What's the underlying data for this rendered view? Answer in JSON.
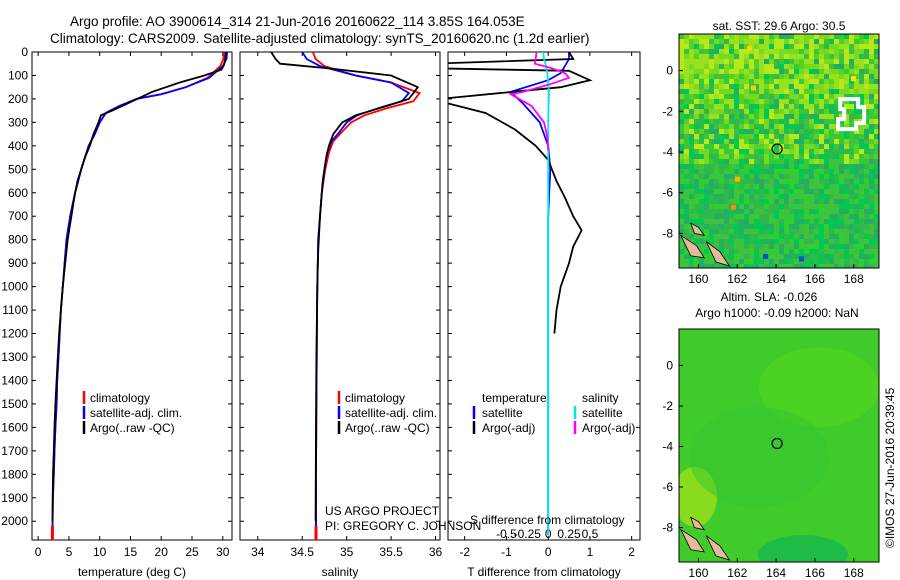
{
  "header": {
    "line1": "Argo profile: AO 3900614_314 21-Jun-2016 20160622_114 3.85S 164.053E",
    "line2": "Climatology: CARS2009. Satellite-adjusted climatology: synTS_20160620.nc (1.2d earlier)"
  },
  "footer": {
    "project": "US ARGO PROJECT",
    "pi": "PI: GREGORY C. JOHNSON",
    "stamp": "©IMOS 27-Jun-2016 20:39:45"
  },
  "colors": {
    "climatology": "#ff0000",
    "satellite": "#0000ff",
    "argo": "#000000",
    "sal_satellite": "#00e5ee",
    "sal_argo": "#ff00ff",
    "map_land": "#e8b89a",
    "map_missing": "#ffffff"
  },
  "chart_data": [
    {
      "id": "temperature",
      "type": "line",
      "xlabel": "temperature (deg C)",
      "ylabel": "",
      "xlim": [
        -1,
        31.5
      ],
      "ylim": [
        2080,
        0
      ],
      "xticks": [
        0,
        5,
        10,
        15,
        20,
        25,
        30
      ],
      "yticks": [
        0,
        100,
        200,
        300,
        400,
        500,
        600,
        700,
        800,
        900,
        1000,
        1100,
        1200,
        1300,
        1400,
        1500,
        1600,
        1700,
        1800,
        1900,
        2000
      ],
      "legend": [
        "climatology",
        "satellite-adj. clim.",
        "Argo(..raw -QC)"
      ],
      "series": [
        {
          "name": "climatology",
          "color": "#ff0000",
          "x": [
            30.2,
            30.1,
            29.6,
            27.5,
            24.0,
            20.0,
            16.0,
            13.2,
            11.0,
            10.0,
            9.2,
            8.2,
            7.6,
            7.0,
            6.5,
            6.0,
            5.6,
            5.2,
            4.9,
            4.6,
            4.3,
            4.0,
            3.7,
            3.5,
            3.3,
            3.1,
            3.0,
            2.8,
            2.65,
            2.55,
            2.4,
            2.35,
            2.32
          ],
          "y": [
            0,
            30,
            60,
            110,
            150,
            180,
            200,
            230,
            260,
            300,
            350,
            400,
            450,
            500,
            550,
            600,
            650,
            700,
            750,
            800,
            900,
            1000,
            1100,
            1200,
            1300,
            1400,
            1500,
            1600,
            1700,
            1800,
            1900,
            2000,
            2060
          ]
        },
        {
          "name": "satellite",
          "color": "#0000ff",
          "x": [
            30.7,
            30.6,
            30.0,
            27.8,
            24.0,
            20.0,
            16.0,
            13.2,
            11.0,
            10.0,
            9.2,
            8.2,
            7.6,
            7.0,
            6.5,
            6.0,
            5.6,
            5.2,
            4.9,
            4.6,
            4.3,
            4.0,
            3.7,
            3.5,
            3.3,
            3.1,
            3.0,
            2.8,
            2.65,
            2.55,
            2.4,
            2.35,
            2.32
          ],
          "y": [
            0,
            30,
            60,
            110,
            150,
            180,
            200,
            230,
            260,
            300,
            350,
            400,
            450,
            500,
            550,
            600,
            650,
            700,
            750,
            800,
            900,
            1000,
            1100,
            1200,
            1300,
            1400,
            1500,
            1600,
            1700,
            1800,
            1900,
            2000,
            2060
          ]
        },
        {
          "name": "Argo",
          "color": "#000000",
          "x": [
            30.5,
            30.4,
            30.2,
            29.8,
            27.0,
            23.0,
            18.5,
            14.5,
            12.0,
            10.2,
            9.8,
            9.0,
            8.4,
            7.6,
            7.0,
            6.4,
            6.0,
            5.7,
            5.4,
            5.1,
            4.8,
            4.4,
            4.0,
            3.7,
            3.4,
            3.2,
            3.0,
            2.8,
            2.65,
            2.55,
            2.42,
            2.36,
            2.33
          ],
          "y": [
            0,
            30,
            55,
            75,
            100,
            130,
            170,
            220,
            250,
            270,
            300,
            350,
            400,
            450,
            500,
            550,
            600,
            650,
            700,
            750,
            800,
            900,
            1000,
            1100,
            1200,
            1300,
            1400,
            1500,
            1600,
            1700,
            1800,
            1900,
            2000
          ]
        }
      ]
    },
    {
      "id": "salinity",
      "type": "line",
      "xlabel": "salinity",
      "ylabel": "",
      "xlim": [
        33.8,
        36.05
      ],
      "ylim": [
        2080,
        0
      ],
      "xticks": [
        34,
        34.5,
        35,
        35.5,
        36
      ],
      "xticklabels": [
        "34",
        "34.5",
        "35",
        "35.5",
        "36"
      ],
      "legend": [
        "climatology",
        "satellite-adj. clim.",
        "Argo(..raw -QC)"
      ],
      "series": [
        {
          "name": "climatology",
          "color": "#ff0000",
          "x": [
            34.62,
            34.65,
            34.75,
            35.1,
            35.5,
            35.82,
            35.75,
            35.45,
            35.2,
            35.05,
            34.95,
            34.85,
            34.8,
            34.76,
            34.72,
            34.7,
            34.68,
            34.67,
            34.665,
            34.66,
            34.655,
            34.655
          ],
          "y": [
            0,
            30,
            60,
            100,
            130,
            175,
            210,
            240,
            270,
            300,
            340,
            380,
            430,
            500,
            600,
            700,
            800,
            1000,
            1200,
            1500,
            1800,
            2060
          ]
        },
        {
          "name": "satellite",
          "color": "#0000ff",
          "x": [
            34.5,
            34.55,
            34.7,
            35.1,
            35.5,
            35.7,
            35.62,
            35.35,
            35.12,
            35.0,
            34.92,
            34.83,
            34.78,
            34.75,
            34.72,
            34.7,
            34.68,
            34.67,
            34.665,
            34.66,
            34.655,
            34.655
          ],
          "y": [
            0,
            30,
            60,
            100,
            130,
            175,
            210,
            240,
            270,
            300,
            340,
            380,
            430,
            500,
            600,
            700,
            800,
            1000,
            1200,
            1500,
            1800,
            2060
          ]
        },
        {
          "name": "Argo",
          "color": "#000000",
          "x": [
            34.15,
            34.2,
            34.25,
            34.8,
            35.5,
            35.8,
            35.7,
            35.45,
            35.1,
            34.95,
            34.85,
            34.8,
            34.77,
            34.73,
            34.7,
            34.68,
            34.67,
            34.66,
            34.655,
            34.65
          ],
          "y": [
            0,
            30,
            50,
            70,
            100,
            150,
            200,
            230,
            270,
            300,
            350,
            400,
            450,
            550,
            700,
            850,
            1000,
            1300,
            1600,
            2000
          ]
        }
      ]
    },
    {
      "id": "differences",
      "type": "line",
      "xlabel": "T difference from climatology",
      "ylabel": "",
      "xlim": [
        -2.4,
        2.2
      ],
      "ylim": [
        2080,
        0
      ],
      "xticks": [
        -2,
        -1,
        0,
        1,
        2
      ],
      "xlabel_top": "S difference from climatology",
      "s_ticks": [
        "-0.5",
        "-0.25",
        "0",
        "0.25",
        "0.5"
      ],
      "s_axis_scale": 2,
      "legend_temperature": {
        "title": "temperature",
        "entries": [
          "satellite",
          "Argo(-adj)"
        ]
      },
      "legend_salinity": {
        "title": "salinity",
        "entries": [
          "satellite",
          "Argo(-adj)"
        ]
      },
      "series": [
        {
          "name": "T satellite",
          "color": "#0000ff",
          "x": [
            0.5,
            0.5,
            0.4,
            0.3,
            0.0,
            -0.9,
            -0.6,
            -0.2,
            0.0,
            0.05,
            0.0,
            0.0,
            0.0,
            0.0,
            0.0,
            0.0,
            0.0,
            0.0
          ],
          "y": [
            0,
            30,
            60,
            90,
            120,
            170,
            220,
            300,
            400,
            500,
            700,
            900,
            1100,
            1300,
            1500,
            1700,
            1900,
            2060
          ]
        },
        {
          "name": "T Argo(-adj)",
          "color": "#000000",
          "x": [
            0.5,
            0.6,
            -2.8,
            -2.6,
            0.5,
            1.0,
            0.3,
            -2.6,
            -2.6,
            -1.5,
            -0.8,
            -0.3,
            0.0,
            0.2,
            0.4,
            0.6,
            0.8,
            0.6,
            0.5,
            0.3,
            0.2,
            0.15
          ],
          "y": [
            0,
            30,
            50,
            70,
            80,
            120,
            150,
            200,
            210,
            260,
            330,
            400,
            460,
            550,
            620,
            700,
            760,
            830,
            900,
            1000,
            1100,
            1200
          ]
        },
        {
          "name": "S satellite",
          "color": "#00e5ee",
          "x": [
            -0.12,
            -0.1,
            -0.05,
            -0.02,
            0.0,
            0.02,
            0.01,
            0.0,
            0.0,
            0.0,
            0.0,
            0.0,
            0.0,
            0.0,
            0.0,
            0.0
          ],
          "y": [
            0,
            30,
            60,
            90,
            130,
            170,
            220,
            300,
            400,
            600,
            800,
            1000,
            1300,
            1600,
            1900,
            2060
          ]
        },
        {
          "name": "S Argo(-adj)",
          "color": "#ff00ff",
          "x": [
            -0.28,
            -0.3,
            -0.32,
            0.1,
            0.4,
            0.5,
            0.0,
            -0.6,
            -0.9,
            -0.4,
            -0.1,
            -0.02,
            0.0
          ],
          "y": [
            0,
            30,
            50,
            70,
            90,
            110,
            140,
            170,
            180,
            230,
            300,
            360,
            420
          ]
        }
      ]
    },
    {
      "id": "sst_map",
      "type": "heatmap",
      "title": "sat. SST: 29.6 Argo: 30.5",
      "xlim": [
        159,
        169.3
      ],
      "ylim": [
        -9.7,
        1.8
      ],
      "xticks": [
        160,
        162,
        164,
        166,
        168
      ],
      "yticks": [
        0,
        -2,
        -4,
        -6,
        -8
      ],
      "float_position": {
        "lon": 164.053,
        "lat": -3.85
      }
    },
    {
      "id": "sla_map",
      "type": "heatmap",
      "title_line1": "Altim. SLA: -0.026",
      "title_line2": "Argo h1000: -0.09 h2000: NaN",
      "xlim": [
        159,
        169.3
      ],
      "ylim": [
        -9.7,
        1.8
      ],
      "xticks": [
        160,
        162,
        164,
        166,
        168
      ],
      "yticks": [
        0,
        -2,
        -4,
        -6,
        -8
      ],
      "float_position": {
        "lon": 164.053,
        "lat": -3.85
      }
    }
  ]
}
